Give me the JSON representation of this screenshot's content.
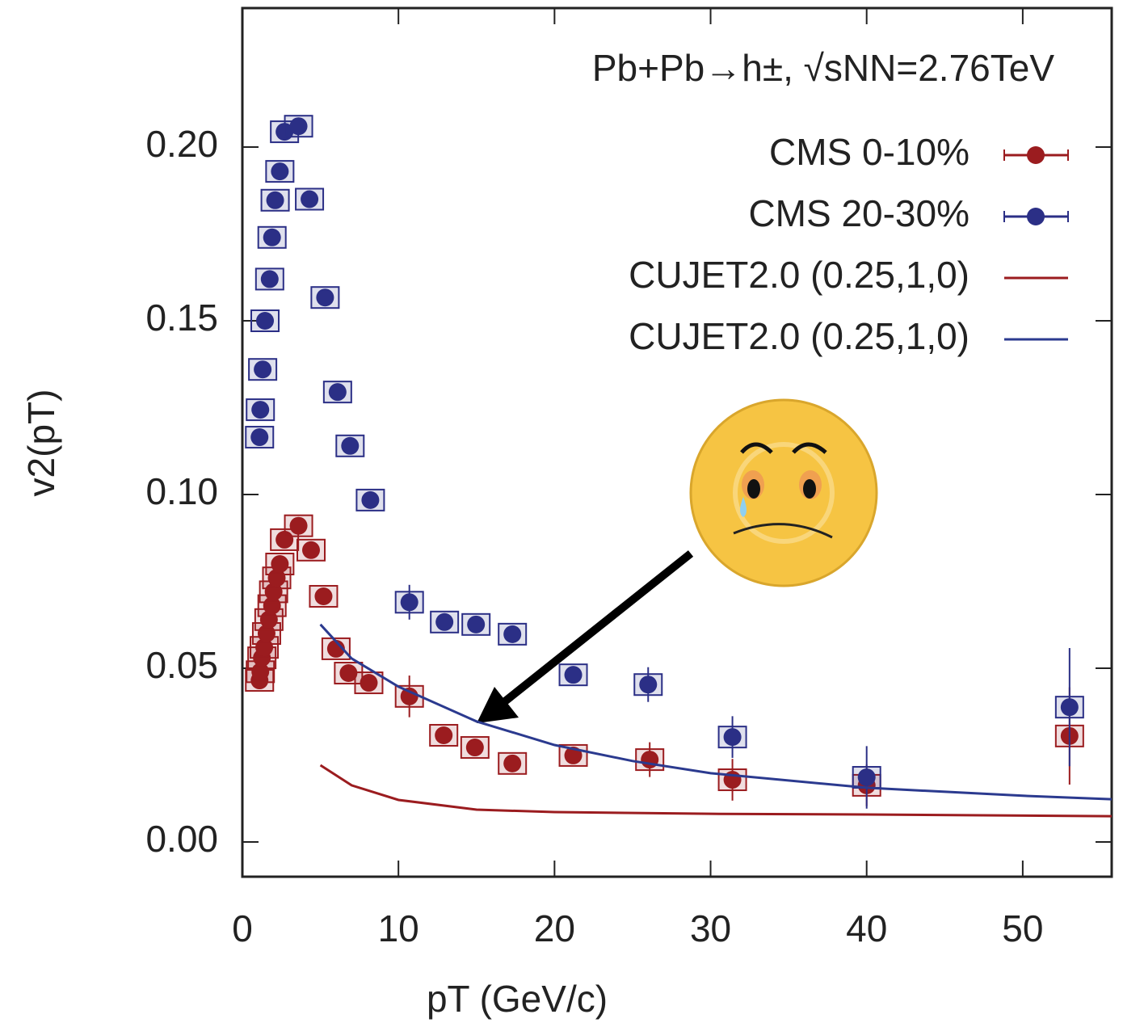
{
  "chart_data": {
    "type": "scatter",
    "title": "Pb+Pb→h±, √sNN=2.76TeV",
    "x_label": "pT (GeV/c)",
    "y_label": "v2(pT)",
    "xlim": [
      0,
      55.7
    ],
    "ylim": [
      -0.01,
      0.24
    ],
    "xticks": [
      0,
      10,
      20,
      30,
      40,
      50
    ],
    "yticks": [
      {
        "value": 0,
        "label": "0.00"
      },
      0.05,
      {
        "value": 0.1,
        "label": "0.10"
      },
      0.15,
      {
        "value": 0.2,
        "label": "0.20"
      }
    ],
    "grid": false,
    "legend": "upper right",
    "series": [
      {
        "name": "CMS 0-10%",
        "color": "#9b1c1f",
        "type": "scatter",
        "x": [
          1.1,
          1.15,
          1.25,
          1.4,
          1.55,
          1.7,
          1.9,
          2.0,
          2.2,
          2.4,
          2.7,
          3.6,
          4.4,
          5.2,
          6.0,
          6.8,
          8.1,
          10.7,
          12.9,
          14.9,
          17.3,
          21.2,
          26.1,
          31.4,
          40.0,
          53.0
        ],
        "values": [
          0.0465,
          0.049,
          0.053,
          0.056,
          0.06,
          0.064,
          0.068,
          0.072,
          0.076,
          0.08,
          0.087,
          0.091,
          0.084,
          0.0707,
          0.0556,
          0.0486,
          0.0458,
          0.0419,
          0.0307,
          0.0272,
          0.0226,
          0.0249,
          0.0237,
          0.0179,
          0.0163,
          0.0305
        ],
        "errors": [
          0,
          0,
          0,
          0,
          0,
          0,
          0,
          0,
          0,
          0,
          0,
          0,
          0,
          0,
          0,
          0,
          0,
          0.006,
          0,
          0,
          0,
          0,
          0.005,
          0.006,
          0.006,
          0.014
        ]
      },
      {
        "name": "CMS 20-30%",
        "color": "#2b2f86",
        "type": "scatter",
        "x": [
          1.1,
          1.15,
          1.3,
          1.45,
          1.75,
          1.9,
          2.1,
          2.4,
          2.7,
          3.6,
          4.3,
          5.3,
          6.1,
          6.9,
          8.2,
          10.7,
          12.95,
          14.97,
          17.3,
          21.2,
          26.0,
          31.4,
          40.0,
          53.0
        ],
        "values": [
          0.1165,
          0.1244,
          0.136,
          0.15,
          0.162,
          0.174,
          0.1847,
          0.193,
          0.2044,
          0.206,
          0.185,
          0.1567,
          0.1295,
          0.114,
          0.0984,
          0.069,
          0.0633,
          0.0626,
          0.0598,
          0.0481,
          0.0453,
          0.0302,
          0.0186,
          0.0388
        ],
        "errors": [
          0,
          0,
          0,
          0,
          0,
          0,
          0,
          0,
          0,
          0,
          0,
          0,
          0,
          0,
          0,
          0.005,
          0,
          0,
          0,
          0,
          0.005,
          0.006,
          0.009,
          0.017
        ]
      },
      {
        "name": "CUJET2.0 (0.25,1,0)",
        "color": "#9b1c1f",
        "type": "line",
        "x": [
          5,
          7,
          10,
          15,
          20,
          30,
          40,
          55.7
        ],
        "values": [
          0.0221,
          0.0163,
          0.0121,
          0.0093,
          0.0086,
          0.0081,
          0.0079,
          0.0074
        ]
      },
      {
        "name": "CUJET2.0 (0.25,1,0)",
        "color": "#2b3a8f",
        "type": "line",
        "x": [
          5,
          7,
          10,
          15,
          20,
          25,
          30,
          40,
          50,
          55.7
        ],
        "values": [
          0.0626,
          0.0528,
          0.0447,
          0.0347,
          0.0279,
          0.0233,
          0.0198,
          0.0156,
          0.0133,
          0.0123
        ]
      }
    ]
  }
}
